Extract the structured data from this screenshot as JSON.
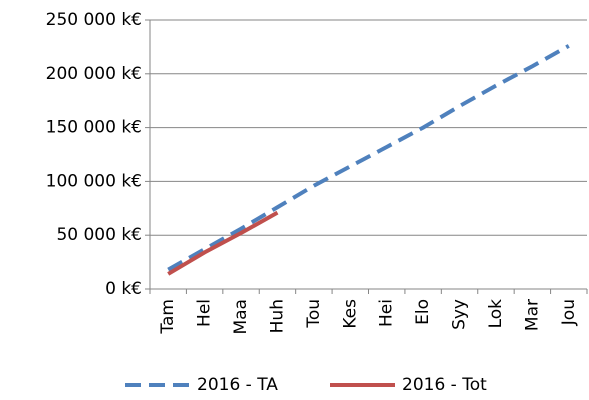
{
  "chart_data": {
    "type": "line",
    "categories": [
      "Tam",
      "Hel",
      "Maa",
      "Huh",
      "Tou",
      "Kes",
      "Hei",
      "Elo",
      "Syy",
      "Lok",
      "Mar",
      "Jou"
    ],
    "series": [
      {
        "name": "2016 - TA",
        "color": "#4f81bd",
        "dashed": true,
        "values": [
          18000,
          37000,
          56000,
          76000,
          96000,
          114000,
          132000,
          150000,
          170000,
          189000,
          207000,
          226000
        ]
      },
      {
        "name": "2016 - Tot",
        "color": "#c0504d",
        "dashed": false,
        "values": [
          14000,
          34000,
          52000,
          71000,
          null,
          null,
          null,
          null,
          null,
          null,
          null,
          null
        ]
      }
    ],
    "ylim": [
      0,
      250000
    ],
    "yticks": [
      {
        "value": 0,
        "label": "0 k€"
      },
      {
        "value": 50000,
        "label": "50 000 k€"
      },
      {
        "value": 100000,
        "label": "100 000 k€"
      },
      {
        "value": 150000,
        "label": "150 000 k€"
      },
      {
        "value": 200000,
        "label": "200 000 k€"
      },
      {
        "value": 250000,
        "label": "250 000 k€"
      }
    ],
    "grid": true,
    "legend": "bottom"
  }
}
